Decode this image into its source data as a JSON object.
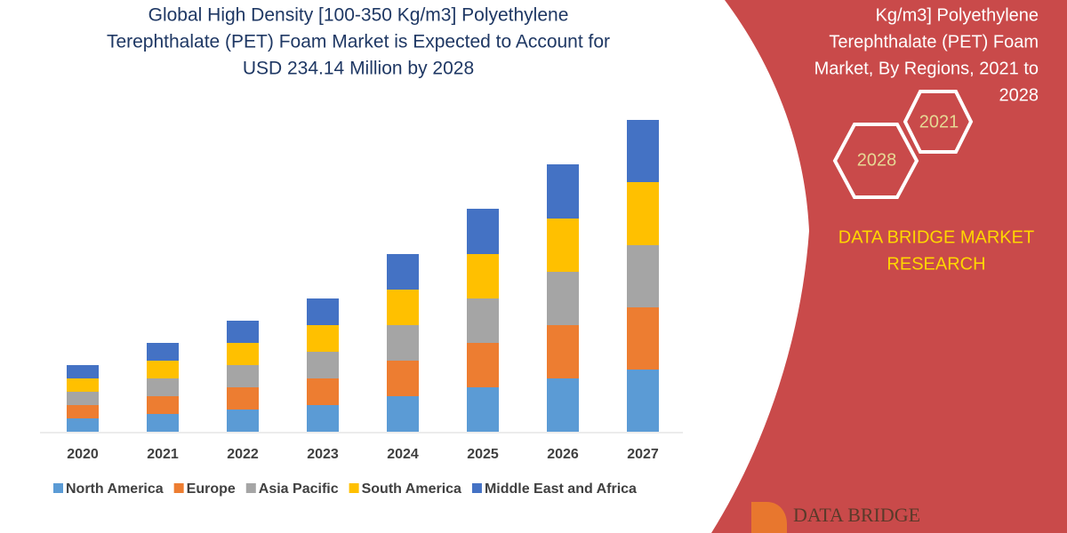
{
  "chart_data": {
    "type": "stacked-bar",
    "title": [
      "Global High Density [100-350 Kg/m3] Polyethylene",
      "Terephthalate (PET) Foam Market is Expected to Account for",
      "USD 234.14 Million by 2028"
    ],
    "categories": [
      "2020",
      "2021",
      "2022",
      "2023",
      "2024",
      "2025",
      "2026",
      "2027"
    ],
    "series": [
      {
        "name": "North America",
        "color": "#5b9bd5",
        "values": [
          15,
          20,
          25,
          30,
          40,
          50,
          60,
          70
        ]
      },
      {
        "name": "Europe",
        "color": "#ed7d31",
        "values": [
          15,
          20,
          25,
          30,
          40,
          50,
          60,
          70
        ]
      },
      {
        "name": "Asia Pacific",
        "color": "#a5a5a5",
        "values": [
          15,
          20,
          25,
          30,
          40,
          50,
          60,
          70
        ]
      },
      {
        "name": "South America",
        "color": "#ffc000",
        "values": [
          15,
          20,
          25,
          30,
          40,
          50,
          60,
          71
        ]
      },
      {
        "name": "Middle East and Africa",
        "color": "#4472c4",
        "values": [
          15,
          20,
          25,
          30,
          40,
          51,
          61,
          70
        ]
      }
    ]
  },
  "panel": {
    "title": [
      "Kg/m3] Polyethylene",
      "Terephthalate (PET) Foam",
      "Market, By Regions, 2021 to",
      "2028"
    ],
    "hex_small": "2021",
    "hex_large": "2028",
    "brand": [
      "DATA BRIDGE MARKET",
      "RESEARCH"
    ],
    "logo": "DATA BRIDGE"
  }
}
